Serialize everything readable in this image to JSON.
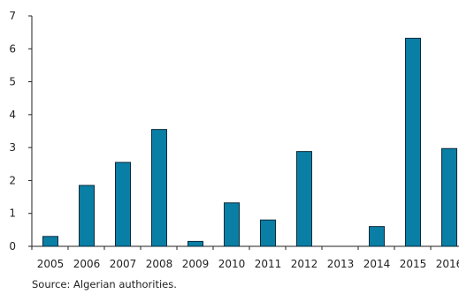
{
  "chart_data": {
    "type": "bar",
    "categories": [
      "2005",
      "2006",
      "2007",
      "2008",
      "2009",
      "2010",
      "2011",
      "2012",
      "2013",
      "2014",
      "2015",
      "2016"
    ],
    "values": [
      0.3,
      1.85,
      2.55,
      3.55,
      0.15,
      1.32,
      0.8,
      2.88,
      0,
      0.6,
      6.32,
      2.97
    ],
    "ylim": [
      0,
      7
    ],
    "yticks": [
      0,
      1,
      2,
      3,
      4,
      5,
      6,
      7
    ],
    "title": "",
    "xlabel": "",
    "ylabel": "",
    "grid": false,
    "legend": "none",
    "colors": {
      "bar": "#0a7fa6",
      "bar_edge": "#0a2a3a",
      "axis": "#222222",
      "text": "#222222"
    }
  },
  "footer": {
    "source": "Source: Algerian authorities."
  }
}
